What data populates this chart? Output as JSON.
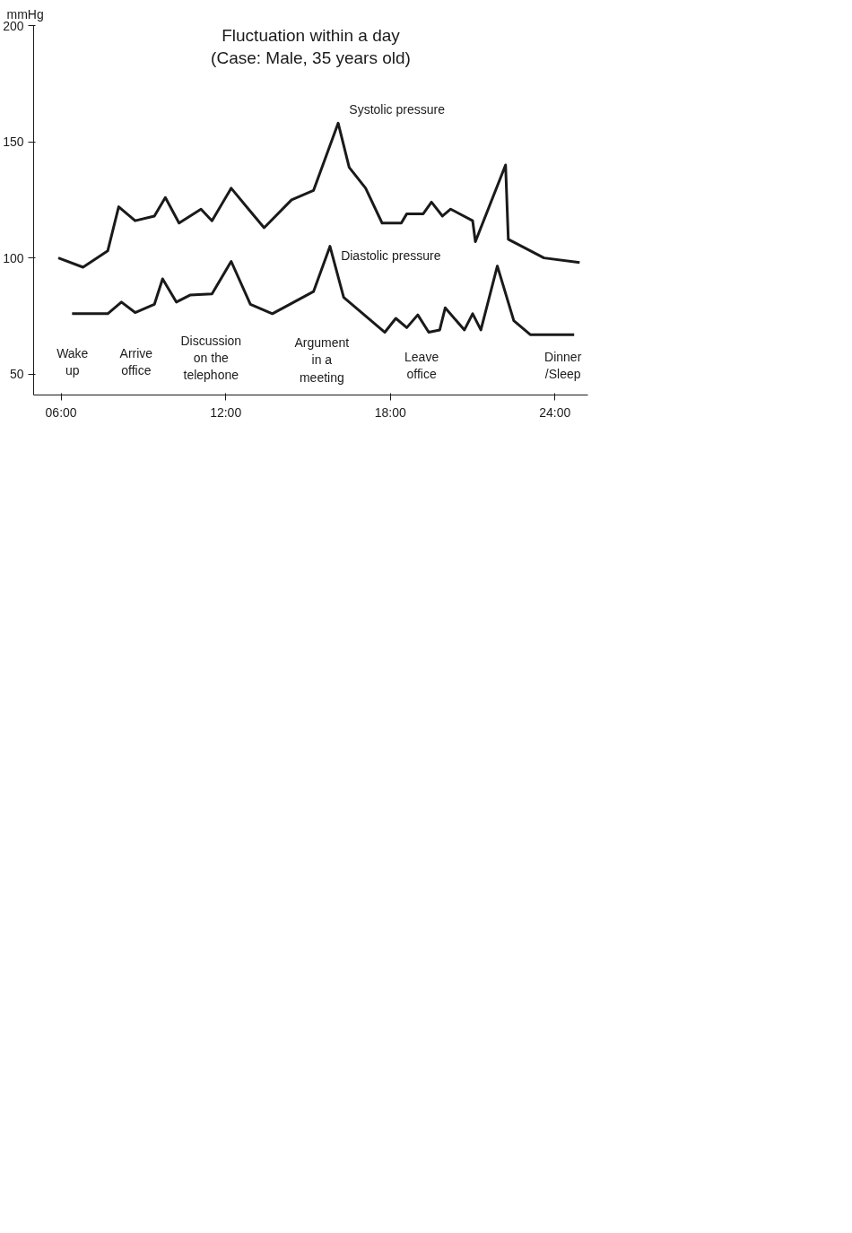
{
  "chart_data": {
    "type": "line",
    "title": "Fluctuation within a day\n(Case: Male, 35 years old)",
    "ylabel": "mmHg",
    "xlim": [
      5,
      25.2
    ],
    "ylim": [
      41,
      200
    ],
    "yticks": [
      50,
      100,
      150,
      200
    ],
    "xticks": [
      {
        "value": 6,
        "label": "06:00"
      },
      {
        "value": 12,
        "label": "12:00"
      },
      {
        "value": 18,
        "label": "18:00"
      },
      {
        "value": 24,
        "label": "24:00"
      }
    ],
    "grid": false,
    "marker": "none",
    "line_style": "solid",
    "series": [
      {
        "name": "Systolic pressure",
        "color": "#1a1a1a",
        "x": [
          5.9,
          6.8,
          7.7,
          8.1,
          8.7,
          9.4,
          9.8,
          10.3,
          11.1,
          11.5,
          12.2,
          12.9,
          13.4,
          14.4,
          15.2,
          16.1,
          16.5,
          17.1,
          17.7,
          18.4,
          18.6,
          19.2,
          19.5,
          19.9,
          20.2,
          21.0,
          21.1,
          22.2,
          22.3,
          23.6,
          24.9
        ],
        "values": [
          100,
          96,
          103,
          122,
          116,
          118,
          126,
          115,
          121,
          116,
          130,
          120,
          113,
          125,
          129,
          158,
          139,
          130,
          115,
          115,
          119,
          119,
          124,
          118,
          121,
          116,
          107,
          140,
          108,
          100,
          98
        ]
      },
      {
        "name": "Diastolic pressure",
        "color": "#1a1a1a",
        "x": [
          6.4,
          7.7,
          8.2,
          8.7,
          9.4,
          9.7,
          10.2,
          10.7,
          11.5,
          12.2,
          12.9,
          13.7,
          15.2,
          15.8,
          16.3,
          17.8,
          18.2,
          18.6,
          19.0,
          19.4,
          19.8,
          20.0,
          20.7,
          21.0,
          21.3,
          21.9,
          22.5,
          23.1,
          24.7
        ],
        "values": [
          76,
          76,
          81,
          76.5,
          80,
          91,
          81,
          84,
          84.5,
          98.5,
          80,
          76,
          85.5,
          105,
          83,
          68,
          74,
          70,
          75.5,
          68,
          69,
          78.5,
          69,
          76,
          69,
          96.5,
          73,
          67,
          67
        ]
      }
    ],
    "annotations": [
      "Wake\nup",
      "Arrive\noffice",
      "Discussion\non the\ntelephone",
      "Argument\nin a\nmeeting",
      "Leave\noffice",
      "Dinner\n/Sleep"
    ]
  }
}
